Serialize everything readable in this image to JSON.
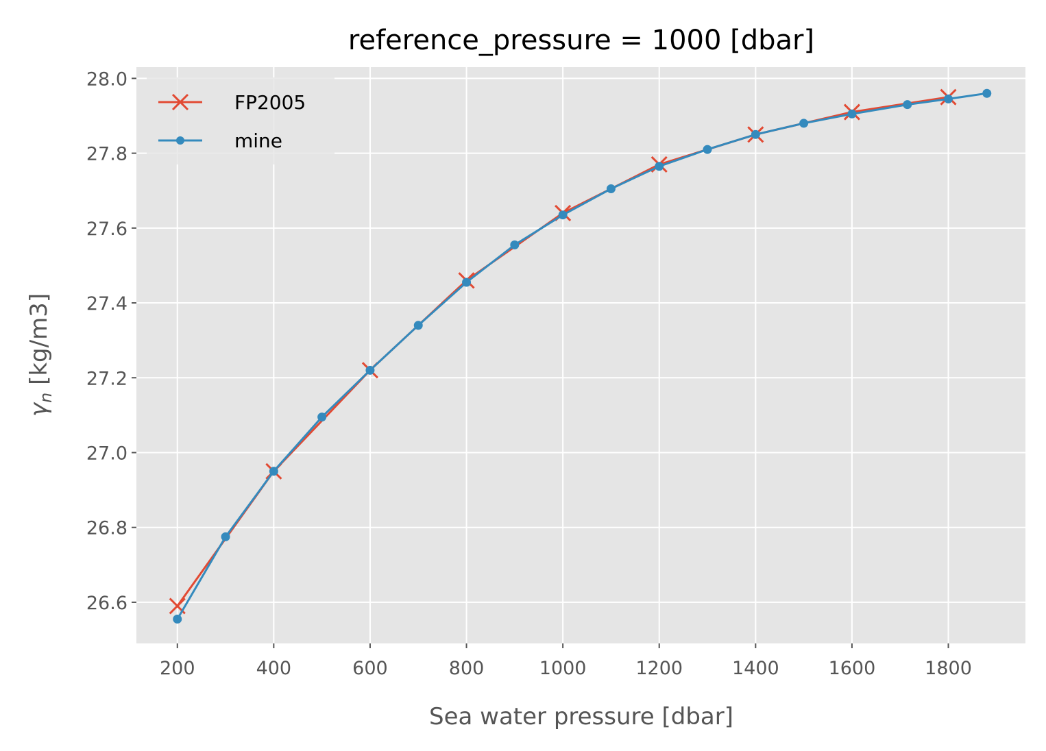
{
  "chart_data": {
    "type": "line",
    "title": "reference_pressure = 1000 [dbar]",
    "xlabel": "Sea water pressure [dbar]",
    "ylabel_symbol": "γ",
    "ylabel_subscript": "n",
    "ylabel_units": " [kg/m3]",
    "xlim": [
      115,
      1960
    ],
    "ylim": [
      26.49,
      28.03
    ],
    "xticks": [
      200,
      400,
      600,
      800,
      1000,
      1200,
      1400,
      1600,
      1800
    ],
    "xtick_labels": [
      "200",
      "400",
      "600",
      "800",
      "1000",
      "1200",
      "1400",
      "1600",
      "1800"
    ],
    "yticks": [
      26.6,
      26.8,
      27.0,
      27.2,
      27.4,
      27.6,
      27.8,
      28.0
    ],
    "ytick_labels": [
      "26.6",
      "26.8",
      "27.0",
      "27.2",
      "27.4",
      "27.6",
      "27.8",
      "28.0"
    ],
    "grid": true,
    "legend_position": "top-left",
    "series": [
      {
        "name": "FP2005",
        "color": "#e24a33",
        "marker": "x",
        "x": [
          200,
          400,
          600,
          800,
          1000,
          1200,
          1400,
          1600,
          1800
        ],
        "y": [
          26.59,
          26.95,
          27.22,
          27.46,
          27.64,
          27.77,
          27.85,
          27.91,
          27.95
        ]
      },
      {
        "name": "mine",
        "color": "#348abd",
        "marker": "o",
        "x": [
          200,
          300,
          400,
          500,
          600,
          700,
          800,
          900,
          1000,
          1100,
          1200,
          1300,
          1400,
          1500,
          1600,
          1715,
          1800,
          1880
        ],
        "y": [
          26.555,
          26.775,
          26.95,
          27.095,
          27.22,
          27.34,
          27.455,
          27.555,
          27.635,
          27.705,
          27.765,
          27.81,
          27.85,
          27.88,
          27.905,
          27.93,
          27.945,
          27.96
        ]
      }
    ]
  }
}
